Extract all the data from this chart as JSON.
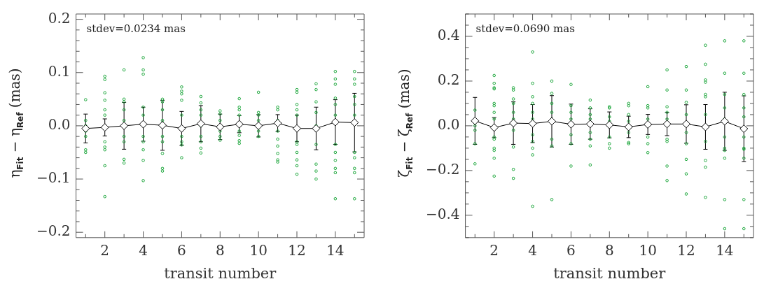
{
  "chart_data": [
    {
      "type": "scatter",
      "xlabel": "transit number",
      "ylabel": "η$_{Fit}$ − η$_{Ref}$ (mas)",
      "annotations": [
        "stdev=0.0234 mas"
      ],
      "xlim": [
        0.5,
        15.5
      ],
      "xticks": [
        {
          "value": 1,
          "label": null
        },
        2,
        {
          "value": 3,
          "label": null
        },
        4,
        {
          "value": 5,
          "label": null
        },
        6,
        {
          "value": 7,
          "label": null
        },
        8,
        {
          "value": 9,
          "label": null
        },
        10,
        {
          "value": 11,
          "label": null
        },
        12,
        {
          "value": 13,
          "label": null
        },
        14,
        {
          "value": 15,
          "label": null
        }
      ],
      "ylim": [
        -0.21,
        0.21
      ],
      "yticks": [
        {
          "value": -0.2,
          "label": "−0.2"
        },
        {
          "value": -0.18,
          "label": null
        },
        {
          "value": -0.16,
          "label": null
        },
        {
          "value": -0.14,
          "label": null
        },
        {
          "value": -0.12,
          "label": null
        },
        {
          "value": -0.1,
          "label": "−0.1"
        },
        {
          "value": -0.08,
          "label": null
        },
        {
          "value": -0.06,
          "label": null
        },
        {
          "value": -0.04,
          "label": null
        },
        {
          "value": -0.02,
          "label": null
        },
        {
          "value": 0,
          "label": "0.0"
        },
        {
          "value": 0.02,
          "label": null
        },
        {
          "value": 0.04,
          "label": null
        },
        {
          "value": 0.06,
          "label": null
        },
        {
          "value": 0.08,
          "label": null
        },
        0.1,
        {
          "value": 0.12,
          "label": null
        },
        {
          "value": 0.14,
          "label": null
        },
        {
          "value": 0.16,
          "label": null
        },
        {
          "value": 0.18,
          "label": null
        },
        0.2
      ],
      "legend": false,
      "series": [
        {
          "type": "scatter",
          "color": "#1fa83e",
          "marker": "circle",
          "x": [
            1,
            1,
            1,
            1,
            1,
            1,
            1,
            2,
            2,
            2,
            2,
            2,
            2,
            2,
            2,
            2,
            2,
            2,
            3,
            3,
            3,
            3,
            3,
            3,
            3,
            3,
            3,
            4,
            4,
            4,
            4,
            4,
            4,
            4,
            4,
            4,
            4,
            5,
            5,
            5,
            5,
            5,
            5,
            5,
            5,
            5,
            6,
            6,
            6,
            6,
            6,
            6,
            6,
            6,
            6,
            7,
            7,
            7,
            7,
            7,
            7,
            7,
            7,
            7,
            8,
            8,
            8,
            8,
            8,
            8,
            9,
            9,
            9,
            9,
            9,
            9,
            9,
            9,
            10,
            10,
            10,
            10,
            10,
            10,
            11,
            11,
            11,
            11,
            11,
            11,
            11,
            11,
            11,
            12,
            12,
            12,
            12,
            12,
            12,
            12,
            12,
            12,
            12,
            12,
            13,
            13,
            13,
            13,
            13,
            13,
            13,
            13,
            13,
            14,
            14,
            14,
            14,
            14,
            14,
            14,
            14,
            14,
            14,
            14,
            14,
            15,
            15,
            15,
            15,
            15,
            15,
            15,
            15,
            15,
            15,
            15
          ],
          "values": [
            0.049,
            0.01,
            0,
            -0.01,
            -0.02,
            -0.045,
            -0.05,
            0.093,
            0.087,
            0.062,
            0.048,
            0.03,
            0.02,
            -0.03,
            -0.04,
            -0.045,
            -0.075,
            -0.133,
            0.105,
            0.05,
            0.045,
            0.03,
            0.01,
            -0.02,
            -0.03,
            -0.063,
            -0.07,
            0.128,
            0.105,
            0.097,
            0.035,
            0.02,
            -0.02,
            -0.03,
            -0.045,
            -0.065,
            -0.103,
            0.05,
            0.045,
            0.03,
            0.01,
            -0.02,
            -0.03,
            -0.052,
            -0.08,
            -0.085,
            0.073,
            0.065,
            0.06,
            0.048,
            0.02,
            -0.02,
            -0.03,
            -0.036,
            -0.06,
            0.055,
            0.043,
            0.03,
            0.02,
            0,
            -0.02,
            -0.03,
            -0.042,
            -0.051,
            0.028,
            0.022,
            0.01,
            -0.01,
            -0.02,
            -0.027,
            0.051,
            0.035,
            0.03,
            0.02,
            -0.01,
            -0.018,
            -0.028,
            -0.033,
            0.063,
            0.025,
            0.02,
            0.01,
            -0.01,
            -0.02,
            0.035,
            0.03,
            0.01,
            -0.01,
            -0.025,
            -0.038,
            -0.052,
            -0.064,
            -0.068,
            0.068,
            0.063,
            0.04,
            0.03,
            0.02,
            -0.03,
            -0.035,
            -0.05,
            -0.064,
            -0.075,
            -0.091,
            0.079,
            0.068,
            0.045,
            0.025,
            0,
            -0.035,
            -0.072,
            -0.085,
            -0.1,
            0.102,
            0.088,
            0.078,
            0.052,
            0.04,
            0.02,
            -0.035,
            -0.05,
            -0.065,
            -0.08,
            -0.088,
            -0.137,
            0.102,
            0.088,
            0.078,
            0.055,
            0.04,
            0.02,
            -0.05,
            -0.06,
            -0.08,
            -0.088,
            -0.137
          ]
        },
        {
          "type": "line",
          "color": "#000000",
          "marker": "diamond",
          "x": [
            1,
            2,
            3,
            4,
            5,
            6,
            7,
            8,
            9,
            10,
            11,
            12,
            13,
            14,
            15
          ],
          "values": [
            -0.005,
            -0.003,
            0,
            0.003,
            0.001,
            -0.005,
            0.004,
            -0.002,
            0.003,
            0,
            0.005,
            -0.005,
            -0.005,
            0.007,
            0.006
          ],
          "errors": [
            0.027,
            0.016,
            0.044,
            0.032,
            0.047,
            0.032,
            0.034,
            0.024,
            0.016,
            0.021,
            0.016,
            0.025,
            0.04,
            0.042,
            0.055
          ]
        }
      ]
    },
    {
      "type": "scatter",
      "xlabel": "transit number",
      "ylabel": "ζ$_{Fit}$ − ζ$_{Ref}$ (mas)",
      "annotations": [
        "stdev=0.0690 mas"
      ],
      "xlim": [
        0.5,
        15.5
      ],
      "xticks": [
        {
          "value": 1,
          "label": null
        },
        2,
        {
          "value": 3,
          "label": null
        },
        4,
        {
          "value": 5,
          "label": null
        },
        6,
        {
          "value": 7,
          "label": null
        },
        8,
        {
          "value": 9,
          "label": null
        },
        10,
        {
          "value": 11,
          "label": null
        },
        12,
        {
          "value": 13,
          "label": null
        },
        14,
        {
          "value": 15,
          "label": null
        }
      ],
      "ylim": [
        -0.5,
        0.5
      ],
      "yticks": [
        {
          "value": -0.5,
          "label": null
        },
        {
          "value": -0.45,
          "label": null
        },
        {
          "value": -0.4,
          "label": "−0.4"
        },
        {
          "value": -0.35,
          "label": null
        },
        {
          "value": -0.3,
          "label": null
        },
        {
          "value": -0.25,
          "label": null
        },
        {
          "value": -0.2,
          "label": "−0.2"
        },
        {
          "value": -0.15,
          "label": null
        },
        {
          "value": -0.1,
          "label": null
        },
        {
          "value": -0.05,
          "label": null
        },
        {
          "value": 0,
          "label": "0.0"
        },
        {
          "value": 0.05,
          "label": null
        },
        {
          "value": 0.1,
          "label": null
        },
        {
          "value": 0.15,
          "label": null
        },
        0.2,
        {
          "value": 0.25,
          "label": null
        },
        {
          "value": 0.3,
          "label": null
        },
        {
          "value": 0.35,
          "label": null
        },
        0.4,
        {
          "value": 0.45,
          "label": null
        },
        {
          "value": 0.5,
          "label": null
        }
      ],
      "legend": false,
      "series": [
        {
          "type": "scatter",
          "color": "#1fa83e",
          "marker": "circle",
          "x": [
            1,
            1,
            1,
            1,
            1,
            2,
            2,
            2,
            2,
            2,
            2,
            2,
            2,
            2,
            2,
            2,
            2,
            2,
            2,
            3,
            3,
            3,
            3,
            3,
            3,
            3,
            3,
            3,
            3,
            4,
            4,
            4,
            4,
            4,
            4,
            4,
            4,
            4,
            4,
            4,
            5,
            5,
            5,
            5,
            5,
            5,
            5,
            5,
            6,
            6,
            6,
            6,
            6,
            6,
            6,
            7,
            7,
            7,
            7,
            7,
            7,
            7,
            7,
            8,
            8,
            8,
            8,
            8,
            8,
            8,
            9,
            9,
            9,
            9,
            9,
            9,
            9,
            10,
            10,
            10,
            10,
            10,
            10,
            10,
            11,
            11,
            11,
            11,
            11,
            11,
            11,
            11,
            11,
            12,
            12,
            12,
            12,
            12,
            12,
            12,
            12,
            12,
            13,
            13,
            13,
            13,
            13,
            13,
            13,
            13,
            13,
            13,
            13,
            14,
            14,
            14,
            14,
            14,
            14,
            14,
            14,
            14,
            14,
            14,
            15,
            15,
            15,
            15,
            15,
            15,
            15,
            15,
            15,
            15,
            15
          ],
          "values": [
            0.07,
            0,
            -0.02,
            -0.08,
            -0.17,
            0.225,
            0.19,
            0.17,
            0.165,
            0.1,
            0.09,
            0.06,
            0.03,
            -0.05,
            -0.06,
            -0.1,
            -0.11,
            -0.145,
            -0.225,
            0.17,
            0.16,
            0.12,
            0.1,
            0.06,
            0.03,
            -0.02,
            -0.095,
            -0.195,
            -0.235,
            0.33,
            0.19,
            0.13,
            0.1,
            0.06,
            0.03,
            -0.04,
            -0.07,
            -0.1,
            -0.13,
            -0.36,
            0.2,
            0.145,
            0.1,
            0.06,
            0.03,
            -0.06,
            -0.09,
            -0.33,
            0.185,
            0.09,
            0.06,
            0.03,
            -0.04,
            -0.08,
            -0.18,
            0.115,
            0.08,
            0.05,
            0.03,
            -0.03,
            -0.06,
            -0.09,
            -0.175,
            0.085,
            0.08,
            0.04,
            0.02,
            -0.05,
            -0.08,
            -0.1,
            0.1,
            0.09,
            0.05,
            0.02,
            -0.03,
            -0.075,
            -0.08,
            0.175,
            0.09,
            0.08,
            0.03,
            -0.05,
            -0.08,
            -0.12,
            0.25,
            0.16,
            0.085,
            0.06,
            0.03,
            -0.06,
            -0.07,
            -0.18,
            -0.245,
            0.265,
            0.16,
            0.105,
            0.05,
            -0.03,
            -0.08,
            -0.15,
            -0.215,
            -0.305,
            0.36,
            0.275,
            0.205,
            0.195,
            0.14,
            0.13,
            0.05,
            -0.07,
            -0.155,
            -0.185,
            -0.32,
            0.38,
            0.235,
            0.14,
            0.08,
            0.03,
            -0.05,
            -0.1,
            -0.11,
            -0.145,
            -0.33,
            -0.46,
            0.38,
            0.235,
            0.14,
            0.08,
            0.04,
            -0.05,
            -0.1,
            -0.105,
            -0.145,
            -0.33,
            -0.46
          ]
        },
        {
          "type": "line",
          "color": "#000000",
          "marker": "diamond",
          "x": [
            1,
            2,
            3,
            4,
            5,
            6,
            7,
            8,
            9,
            10,
            11,
            12,
            13,
            14,
            15
          ],
          "values": [
            0.022,
            -0.008,
            0.012,
            0.01,
            0.02,
            0.007,
            0.008,
            0.004,
            -0.005,
            0.006,
            0.008,
            0.008,
            -0.005,
            0.02,
            -0.013
          ],
          "errors": [
            0.105,
            0.045,
            0.095,
            0.085,
            0.115,
            0.09,
            0.068,
            0.058,
            0.048,
            0.045,
            0.052,
            0.086,
            0.1,
            0.13,
            0.147
          ]
        }
      ]
    }
  ]
}
